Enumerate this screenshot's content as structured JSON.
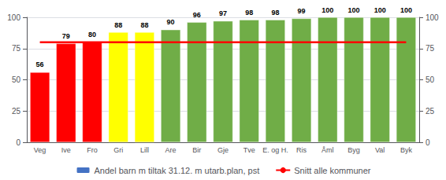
{
  "chart_data": {
    "type": "bar",
    "categories": [
      "Veg",
      "Ive",
      "Fro",
      "Gri",
      "Lill",
      "Are",
      "Bir",
      "Gje",
      "Tve",
      "E. og H.",
      "Ris",
      "Åml",
      "Byg",
      "Val",
      "Byk"
    ],
    "series": [
      {
        "name": "Andel barn m tiltak 31.12. m utarb.plan, pst",
        "type": "bar",
        "color": "#4472C4",
        "colors": [
          "#FF0000",
          "#FF0000",
          "#FF0000",
          "#FFFF00",
          "#FFFF00",
          "#70AD47",
          "#70AD47",
          "#70AD47",
          "#70AD47",
          "#70AD47",
          "#70AD47",
          "#70AD47",
          "#70AD47",
          "#70AD47",
          "#70AD47"
        ],
        "values": [
          56,
          79,
          80,
          88,
          88,
          90,
          96,
          97,
          98,
          98,
          99,
          100,
          100,
          100,
          100
        ],
        "data_labels": true
      },
      {
        "name": "Snitt alle kommuner",
        "type": "line",
        "color": "#FF0000",
        "values": [
          80,
          80,
          80,
          80,
          80,
          80,
          80,
          80,
          80,
          80,
          80,
          80,
          80,
          80,
          80
        ]
      }
    ],
    "ylim": [
      0,
      100
    ],
    "yticks": [
      0,
      25,
      50,
      75,
      100
    ],
    "y2lim": [
      0,
      100
    ],
    "y2ticks": [
      0,
      25,
      50,
      75,
      100
    ],
    "grid": true,
    "legend": "bottom"
  }
}
